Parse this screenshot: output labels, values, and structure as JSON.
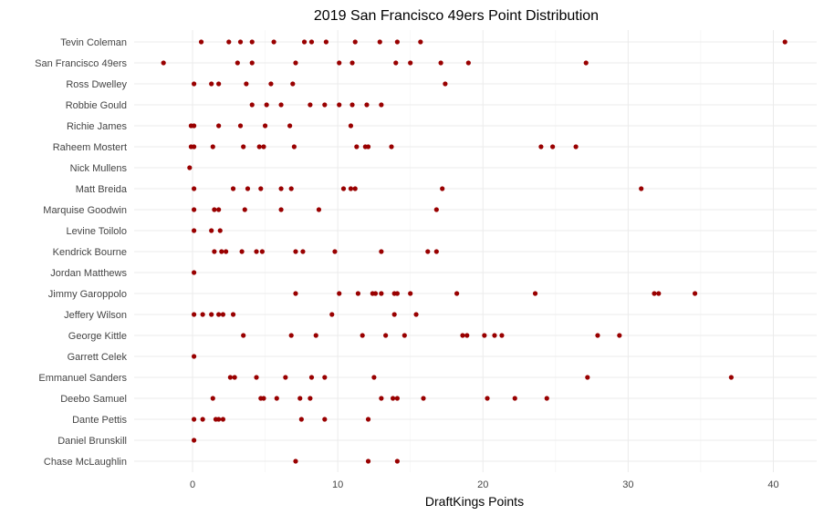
{
  "chart_data": {
    "type": "scatter",
    "title": "2019 San Francisco 49ers Point Distribution",
    "xlabel": "DraftKings Points",
    "ylabel": "",
    "xlim": [
      -4,
      43
    ],
    "x_ticks": [
      0,
      10,
      20,
      30,
      40
    ],
    "x_minor_ticks": [
      5,
      15,
      25,
      35
    ],
    "grid": true,
    "legend": "none",
    "point_color": "#990000",
    "categories": [
      "Tevin Coleman",
      "San Francisco 49ers",
      "Ross Dwelley",
      "Robbie Gould",
      "Richie James",
      "Raheem Mostert",
      "Nick Mullens",
      "Matt Breida",
      "Marquise Goodwin",
      "Levine Toilolo",
      "Kendrick Bourne",
      "Jordan Matthews",
      "Jimmy Garoppolo",
      "Jeffery Wilson",
      "George Kittle",
      "Garrett Celek",
      "Emmanuel Sanders",
      "Deebo Samuel",
      "Dante Pettis",
      "Daniel Brunskill",
      "Chase McLaughlin"
    ],
    "series": [
      {
        "category": "Tevin Coleman",
        "x": [
          0.6,
          2.5,
          3.3,
          4.1,
          5.6,
          7.7,
          8.2,
          9.2,
          11.2,
          12.9,
          14.1,
          15.7,
          40.8
        ]
      },
      {
        "category": "San Francisco 49ers",
        "x": [
          -2.0,
          3.1,
          4.1,
          7.1,
          10.1,
          11.0,
          14.0,
          15.0,
          17.1,
          19.0,
          27.1
        ]
      },
      {
        "category": "Ross Dwelley",
        "x": [
          0.1,
          1.3,
          1.8,
          3.7,
          5.4,
          6.9,
          17.4
        ]
      },
      {
        "category": "Robbie Gould",
        "x": [
          4.1,
          5.1,
          6.1,
          8.1,
          9.1,
          10.1,
          11.0,
          12.0,
          13.0
        ]
      },
      {
        "category": "Richie James",
        "x": [
          -0.1,
          0.1,
          1.8,
          3.3,
          5.0,
          6.7,
          10.9
        ]
      },
      {
        "category": "Raheem Mostert",
        "x": [
          -0.1,
          0.1,
          1.4,
          3.5,
          4.6,
          4.9,
          7.0,
          11.3,
          11.9,
          12.1,
          13.7,
          24.0,
          24.8,
          26.4
        ]
      },
      {
        "category": "Nick Mullens",
        "x": [
          -0.2
        ]
      },
      {
        "category": "Matt Breida",
        "x": [
          0.1,
          2.8,
          3.8,
          4.7,
          6.1,
          6.8,
          10.4,
          10.9,
          11.2,
          17.2,
          30.9
        ]
      },
      {
        "category": "Marquise Goodwin",
        "x": [
          0.1,
          1.5,
          1.8,
          3.6,
          6.1,
          8.7,
          16.8
        ]
      },
      {
        "category": "Levine Toilolo",
        "x": [
          0.1,
          1.3,
          1.9
        ]
      },
      {
        "category": "Kendrick Bourne",
        "x": [
          1.5,
          2.0,
          2.3,
          3.4,
          4.4,
          4.8,
          7.1,
          7.6,
          9.8,
          13.0,
          16.2,
          16.8
        ]
      },
      {
        "category": "Jordan Matthews",
        "x": [
          0.1
        ]
      },
      {
        "category": "Jimmy Garoppolo",
        "x": [
          7.1,
          10.1,
          11.4,
          12.4,
          12.6,
          13.0,
          13.9,
          14.1,
          15.0,
          18.2,
          23.6,
          31.8,
          32.1,
          34.6
        ]
      },
      {
        "category": "Jeffery Wilson",
        "x": [
          0.1,
          0.7,
          1.3,
          1.8,
          2.1,
          2.8,
          9.6,
          13.9,
          15.4
        ]
      },
      {
        "category": "George Kittle",
        "x": [
          3.5,
          6.8,
          8.5,
          11.7,
          13.3,
          14.6,
          18.6,
          18.9,
          20.1,
          20.8,
          21.3,
          27.9,
          29.4
        ]
      },
      {
        "category": "Garrett Celek",
        "x": [
          0.1
        ]
      },
      {
        "category": "Emmanuel Sanders",
        "x": [
          2.6,
          2.9,
          4.4,
          6.4,
          8.2,
          9.1,
          12.5,
          27.2,
          37.1
        ]
      },
      {
        "category": "Deebo Samuel",
        "x": [
          1.4,
          4.7,
          4.9,
          5.8,
          7.4,
          8.1,
          13.0,
          13.8,
          14.1,
          15.9,
          20.3,
          22.2,
          24.4
        ]
      },
      {
        "category": "Dante Pettis",
        "x": [
          0.1,
          0.7,
          1.6,
          1.8,
          2.1,
          7.5,
          9.1,
          12.1
        ]
      },
      {
        "category": "Daniel Brunskill",
        "x": [
          0.1
        ]
      },
      {
        "category": "Chase McLaughlin",
        "x": [
          7.1,
          12.1,
          14.1
        ]
      }
    ]
  }
}
